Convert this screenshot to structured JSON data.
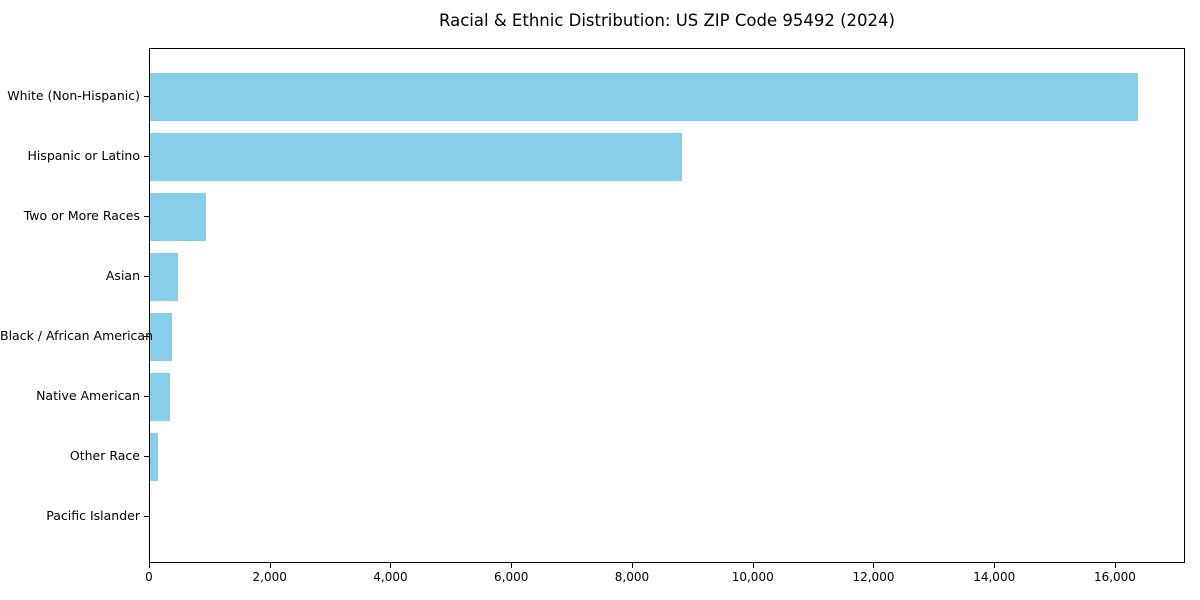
{
  "chart_data": {
    "type": "bar",
    "orientation": "horizontal",
    "title": "Racial & Ethnic Distribution: US ZIP Code 95492 (2024)",
    "categories": [
      "White (Non-Hispanic)",
      "Hispanic or Latino",
      "Two or More Races",
      "Asian",
      "Black / African American",
      "Native American",
      "Other Race",
      "Pacific Islander"
    ],
    "values": [
      16360,
      8810,
      920,
      465,
      370,
      330,
      140,
      0
    ],
    "xlabel": "",
    "ylabel": "",
    "xlim": [
      0,
      17160
    ],
    "x_ticks": [
      0,
      2000,
      4000,
      6000,
      8000,
      10000,
      12000,
      14000,
      16000
    ],
    "x_tick_labels": [
      "0",
      "2,000",
      "4,000",
      "6,000",
      "8,000",
      "10,000",
      "12,000",
      "14,000",
      "16,000"
    ],
    "bar_color": "#87CEEB",
    "spine_color": "#000000",
    "background": "#FFFFFF",
    "grid": false,
    "legend": "none"
  }
}
